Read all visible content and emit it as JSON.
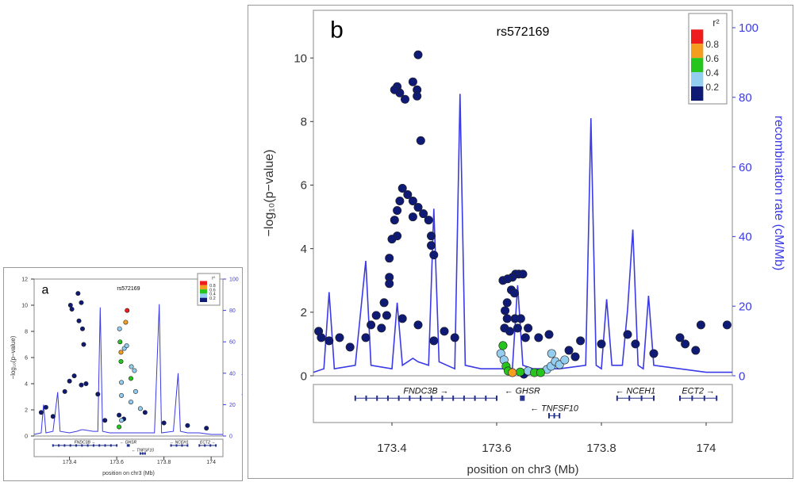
{
  "chart_data": [
    {
      "panel": "a",
      "type": "scatter",
      "panel_label": "a",
      "title": "rs572169",
      "ylabel": "−log₁₀(p−value)",
      "y2label": "recombination rate (cM/Mb)",
      "xlabel": "position on chr3 (Mb)",
      "xlim": [
        173.25,
        174.05
      ],
      "ylim": [
        0,
        12
      ],
      "y2lim": [
        0,
        100
      ],
      "xticks": [
        "173.4",
        "173.6",
        "173.8",
        "174"
      ],
      "yticks": [
        "0",
        "2",
        "4",
        "6",
        "8",
        "10",
        "12"
      ],
      "y2ticks": [
        "0",
        "20",
        "40",
        "60",
        "80",
        "100"
      ],
      "legend": {
        "title": "r²",
        "labels": [
          "0.8",
          "0.6",
          "0.4",
          "0.2"
        ],
        "colors": [
          "#ee1c1c",
          "#f59d1f",
          "#25c51d",
          "#93cdf0",
          "#0e1a73"
        ],
        "position": "top-right"
      },
      "genes": [
        {
          "name": "FNDC3B",
          "direction": "→",
          "start": 173.33,
          "end": 173.6,
          "row": 0
        },
        {
          "name": "GHSR",
          "direction": "←",
          "start": 173.646,
          "end": 173.652,
          "row": 0
        },
        {
          "name": "NCEH1",
          "direction": "←",
          "start": 173.83,
          "end": 173.9,
          "row": 0
        },
        {
          "name": "ECT2",
          "direction": "→",
          "start": 173.95,
          "end": 174.02,
          "row": 0
        },
        {
          "name": "TNFSF10",
          "direction": "←",
          "start": 173.7,
          "end": 173.72,
          "row": 1
        }
      ],
      "recombination": [
        [
          173.25,
          1
        ],
        [
          173.28,
          2
        ],
        [
          173.29,
          20
        ],
        [
          173.3,
          2
        ],
        [
          173.33,
          3
        ],
        [
          173.35,
          28
        ],
        [
          173.36,
          3
        ],
        [
          173.4,
          2
        ],
        [
          173.43,
          3
        ],
        [
          173.45,
          4
        ],
        [
          173.46,
          4
        ],
        [
          173.5,
          3
        ],
        [
          173.52,
          3
        ],
        [
          173.53,
          82
        ],
        [
          173.54,
          3
        ],
        [
          173.57,
          2
        ],
        [
          173.62,
          2
        ],
        [
          173.63,
          2
        ],
        [
          173.66,
          2
        ],
        [
          173.7,
          2
        ],
        [
          173.76,
          2
        ],
        [
          173.78,
          84
        ],
        [
          173.79,
          2
        ],
        [
          173.84,
          3
        ],
        [
          173.86,
          40
        ],
        [
          173.87,
          3
        ],
        [
          173.9,
          2
        ],
        [
          173.95,
          2
        ],
        [
          174.0,
          1
        ],
        [
          174.05,
          1
        ]
      ],
      "points": [
        {
          "x": 173.404,
          "y": 10.0,
          "r2": 0.1
        },
        {
          "x": 173.41,
          "y": 9.7,
          "r2": 0.1
        },
        {
          "x": 173.436,
          "y": 10.9,
          "r2": 0.1
        },
        {
          "x": 173.45,
          "y": 10.2,
          "r2": 0.1
        },
        {
          "x": 173.44,
          "y": 8.8,
          "r2": 0.1
        },
        {
          "x": 173.455,
          "y": 8.2,
          "r2": 0.1
        },
        {
          "x": 173.46,
          "y": 7.0,
          "r2": 0.1
        },
        {
          "x": 173.42,
          "y": 4.6,
          "r2": 0.1
        },
        {
          "x": 173.4,
          "y": 4.2,
          "r2": 0.1
        },
        {
          "x": 173.38,
          "y": 3.4,
          "r2": 0.1
        },
        {
          "x": 173.47,
          "y": 4.0,
          "r2": 0.1
        },
        {
          "x": 173.45,
          "y": 3.9,
          "r2": 0.1
        },
        {
          "x": 173.3,
          "y": 2.2,
          "r2": 0.1
        },
        {
          "x": 173.28,
          "y": 1.8,
          "r2": 0.1
        },
        {
          "x": 173.33,
          "y": 1.5,
          "r2": 0.1
        },
        {
          "x": 173.52,
          "y": 3.2,
          "r2": 0.1
        },
        {
          "x": 173.55,
          "y": 1.2,
          "r2": 0.1
        },
        {
          "x": 173.644,
          "y": 9.6,
          "r2": 0.9
        },
        {
          "x": 173.638,
          "y": 8.7,
          "r2": 0.7
        },
        {
          "x": 173.612,
          "y": 8.2,
          "r2": 0.3
        },
        {
          "x": 173.614,
          "y": 7.2,
          "r2": 0.5
        },
        {
          "x": 173.632,
          "y": 6.7,
          "r2": 0.3
        },
        {
          "x": 173.618,
          "y": 6.4,
          "r2": 0.6
        },
        {
          "x": 173.642,
          "y": 6.9,
          "r2": 0.3
        },
        {
          "x": 173.618,
          "y": 5.7,
          "r2": 0.5
        },
        {
          "x": 173.662,
          "y": 5.3,
          "r2": 0.3
        },
        {
          "x": 173.675,
          "y": 5.0,
          "r2": 0.3
        },
        {
          "x": 173.66,
          "y": 4.4,
          "r2": 0.5
        },
        {
          "x": 173.62,
          "y": 4.1,
          "r2": 0.3
        },
        {
          "x": 173.68,
          "y": 3.4,
          "r2": 0.3
        },
        {
          "x": 173.62,
          "y": 3.1,
          "r2": 0.3
        },
        {
          "x": 173.66,
          "y": 2.6,
          "r2": 0.3
        },
        {
          "x": 173.7,
          "y": 2.1,
          "r2": 0.3
        },
        {
          "x": 173.72,
          "y": 1.8,
          "r2": 0.1
        },
        {
          "x": 173.61,
          "y": 1.6,
          "r2": 0.1
        },
        {
          "x": 173.63,
          "y": 1.3,
          "r2": 0.1
        },
        {
          "x": 173.61,
          "y": 0.7,
          "r2": 0.5
        },
        {
          "x": 173.62,
          "y": 1.2,
          "r2": 0.3
        },
        {
          "x": 173.8,
          "y": 1.0,
          "r2": 0.1
        },
        {
          "x": 173.9,
          "y": 0.8,
          "r2": 0.1
        },
        {
          "x": 173.98,
          "y": 0.6,
          "r2": 0.1
        }
      ]
    },
    {
      "panel": "b",
      "type": "scatter",
      "panel_label": "b",
      "title": "rs572169",
      "ylabel": "−log₁₀(p−value)",
      "y2label": "recombination rate (cM/Mb)",
      "xlabel": "position on chr3 (Mb)",
      "xlim": [
        173.25,
        174.05
      ],
      "ylim": [
        0,
        11.5
      ],
      "y2lim": [
        0,
        105
      ],
      "xticks": [
        "173.4",
        "173.6",
        "173.8",
        "174"
      ],
      "yticks": [
        "0",
        "2",
        "4",
        "6",
        "8",
        "10"
      ],
      "y2ticks": [
        "0",
        "20",
        "40",
        "60",
        "80",
        "100"
      ],
      "legend": {
        "title": "r²",
        "labels": [
          "0.8",
          "0.6",
          "0.4",
          "0.2"
        ],
        "colors": [
          "#ee1c1c",
          "#f59d1f",
          "#25c51d",
          "#93cdf0",
          "#0e1a73"
        ],
        "position": "top-right"
      },
      "genes": [
        {
          "name": "FNDC3B",
          "direction": "→",
          "start": 173.33,
          "end": 173.6,
          "row": 0
        },
        {
          "name": "GHSR",
          "direction": "←",
          "start": 173.646,
          "end": 173.652,
          "row": 0
        },
        {
          "name": "NCEH1",
          "direction": "←",
          "start": 173.83,
          "end": 173.9,
          "row": 0
        },
        {
          "name": "ECT2",
          "direction": "→",
          "start": 173.95,
          "end": 174.02,
          "row": 0
        },
        {
          "name": "TNFSF10",
          "direction": "←",
          "start": 173.7,
          "end": 173.72,
          "row": 1
        }
      ],
      "recombination": [
        [
          173.25,
          1
        ],
        [
          173.27,
          2
        ],
        [
          173.28,
          24
        ],
        [
          173.29,
          2
        ],
        [
          173.33,
          3
        ],
        [
          173.35,
          33
        ],
        [
          173.36,
          3
        ],
        [
          173.4,
          2
        ],
        [
          173.41,
          21
        ],
        [
          173.42,
          3
        ],
        [
          173.44,
          5
        ],
        [
          173.45,
          4
        ],
        [
          173.47,
          3
        ],
        [
          173.48,
          48
        ],
        [
          173.49,
          4
        ],
        [
          173.52,
          2
        ],
        [
          173.53,
          81
        ],
        [
          173.54,
          3
        ],
        [
          173.57,
          2
        ],
        [
          173.6,
          2
        ],
        [
          173.63,
          2
        ],
        [
          173.64,
          26
        ],
        [
          173.65,
          3
        ],
        [
          173.67,
          2
        ],
        [
          173.7,
          2
        ],
        [
          173.72,
          2
        ],
        [
          173.77,
          3
        ],
        [
          173.78,
          74
        ],
        [
          173.79,
          3
        ],
        [
          173.8,
          2
        ],
        [
          173.81,
          22
        ],
        [
          173.82,
          3
        ],
        [
          173.84,
          3
        ],
        [
          173.85,
          19
        ],
        [
          173.86,
          42
        ],
        [
          173.87,
          3
        ],
        [
          173.88,
          2
        ],
        [
          173.89,
          23
        ],
        [
          173.9,
          3
        ],
        [
          173.95,
          2
        ],
        [
          174.0,
          1
        ],
        [
          174.05,
          1
        ]
      ],
      "points": [
        {
          "x": 173.45,
          "y": 10.1,
          "r2": 0.1
        },
        {
          "x": 173.41,
          "y": 9.1,
          "r2": 0.1
        },
        {
          "x": 173.415,
          "y": 8.9,
          "r2": 0.1
        },
        {
          "x": 173.44,
          "y": 9.25,
          "r2": 0.1
        },
        {
          "x": 173.448,
          "y": 9.0,
          "r2": 0.1
        },
        {
          "x": 173.425,
          "y": 8.7,
          "r2": 0.1
        },
        {
          "x": 173.448,
          "y": 8.8,
          "r2": 0.1
        },
        {
          "x": 173.405,
          "y": 9.0,
          "r2": 0.1
        },
        {
          "x": 173.455,
          "y": 7.4,
          "r2": 0.1
        },
        {
          "x": 173.42,
          "y": 5.9,
          "r2": 0.1
        },
        {
          "x": 173.43,
          "y": 5.7,
          "r2": 0.1
        },
        {
          "x": 173.415,
          "y": 5.5,
          "r2": 0.1
        },
        {
          "x": 173.44,
          "y": 5.5,
          "r2": 0.1
        },
        {
          "x": 173.45,
          "y": 5.3,
          "r2": 0.1
        },
        {
          "x": 173.41,
          "y": 5.2,
          "r2": 0.1
        },
        {
          "x": 173.46,
          "y": 5.1,
          "r2": 0.1
        },
        {
          "x": 173.47,
          "y": 4.9,
          "r2": 0.1
        },
        {
          "x": 173.405,
          "y": 4.9,
          "r2": 0.1
        },
        {
          "x": 173.44,
          "y": 5.0,
          "r2": 0.1
        },
        {
          "x": 173.41,
          "y": 4.4,
          "r2": 0.1
        },
        {
          "x": 173.4,
          "y": 4.3,
          "r2": 0.1
        },
        {
          "x": 173.475,
          "y": 4.4,
          "r2": 0.1
        },
        {
          "x": 173.475,
          "y": 4.1,
          "r2": 0.1
        },
        {
          "x": 173.395,
          "y": 3.7,
          "r2": 0.1
        },
        {
          "x": 173.48,
          "y": 3.8,
          "r2": 0.1
        },
        {
          "x": 173.395,
          "y": 3.1,
          "r2": 0.1
        },
        {
          "x": 173.395,
          "y": 2.9,
          "r2": 0.1
        },
        {
          "x": 173.385,
          "y": 2.3,
          "r2": 0.1
        },
        {
          "x": 173.39,
          "y": 1.9,
          "r2": 0.1
        },
        {
          "x": 173.37,
          "y": 1.9,
          "r2": 0.1
        },
        {
          "x": 173.42,
          "y": 1.8,
          "r2": 0.1
        },
        {
          "x": 173.36,
          "y": 1.6,
          "r2": 0.1
        },
        {
          "x": 173.38,
          "y": 1.5,
          "r2": 0.1
        },
        {
          "x": 173.45,
          "y": 1.6,
          "r2": 0.1
        },
        {
          "x": 173.5,
          "y": 1.4,
          "r2": 0.1
        },
        {
          "x": 173.52,
          "y": 1.2,
          "r2": 0.1
        },
        {
          "x": 173.48,
          "y": 1.1,
          "r2": 0.1
        },
        {
          "x": 173.35,
          "y": 1.2,
          "r2": 0.1
        },
        {
          "x": 173.636,
          "y": 3.2,
          "r2": 0.1
        },
        {
          "x": 173.642,
          "y": 3.2,
          "r2": 0.1
        },
        {
          "x": 173.65,
          "y": 3.2,
          "r2": 0.1
        },
        {
          "x": 173.63,
          "y": 3.1,
          "r2": 0.1
        },
        {
          "x": 173.612,
          "y": 3.0,
          "r2": 0.1
        },
        {
          "x": 173.621,
          "y": 3.05,
          "r2": 0.1
        },
        {
          "x": 173.628,
          "y": 2.7,
          "r2": 0.1
        },
        {
          "x": 173.634,
          "y": 2.6,
          "r2": 0.1
        },
        {
          "x": 173.62,
          "y": 2.3,
          "r2": 0.1
        },
        {
          "x": 173.616,
          "y": 2.05,
          "r2": 0.1
        },
        {
          "x": 173.62,
          "y": 1.8,
          "r2": 0.1
        },
        {
          "x": 173.635,
          "y": 1.8,
          "r2": 0.1
        },
        {
          "x": 173.646,
          "y": 1.8,
          "r2": 0.1
        },
        {
          "x": 173.615,
          "y": 1.5,
          "r2": 0.1
        },
        {
          "x": 173.625,
          "y": 1.4,
          "r2": 0.1
        },
        {
          "x": 173.64,
          "y": 1.5,
          "r2": 0.1
        },
        {
          "x": 173.66,
          "y": 1.5,
          "r2": 0.1
        },
        {
          "x": 173.68,
          "y": 1.2,
          "r2": 0.1
        },
        {
          "x": 173.7,
          "y": 1.3,
          "r2": 0.1
        },
        {
          "x": 173.655,
          "y": 1.2,
          "r2": 0.1
        },
        {
          "x": 173.612,
          "y": 0.95,
          "r2": 0.5
        },
        {
          "x": 173.608,
          "y": 0.7,
          "r2": 0.3
        },
        {
          "x": 173.614,
          "y": 0.5,
          "r2": 0.3
        },
        {
          "x": 173.618,
          "y": 0.3,
          "r2": 0.5
        },
        {
          "x": 173.622,
          "y": 0.15,
          "r2": 0.5
        },
        {
          "x": 173.63,
          "y": 0.1,
          "r2": 0.7
        },
        {
          "x": 173.645,
          "y": 0.12,
          "r2": 0.5
        },
        {
          "x": 173.66,
          "y": 0.15,
          "r2": 0.3
        },
        {
          "x": 173.672,
          "y": 0.1,
          "r2": 0.5
        },
        {
          "x": 173.684,
          "y": 0.1,
          "r2": 0.5
        },
        {
          "x": 173.696,
          "y": 0.2,
          "r2": 0.3
        },
        {
          "x": 173.704,
          "y": 0.3,
          "r2": 0.3
        },
        {
          "x": 173.712,
          "y": 0.45,
          "r2": 0.3
        },
        {
          "x": 173.72,
          "y": 0.35,
          "r2": 0.3
        },
        {
          "x": 173.73,
          "y": 0.5,
          "r2": 0.3
        },
        {
          "x": 173.705,
          "y": 0.7,
          "r2": 0.3
        },
        {
          "x": 173.738,
          "y": 0.8,
          "r2": 0.1
        },
        {
          "x": 173.75,
          "y": 0.6,
          "r2": 0.1
        },
        {
          "x": 173.652,
          "y": 0.05,
          "r2": 0.1
        },
        {
          "x": 173.26,
          "y": 1.4,
          "r2": 0.1
        },
        {
          "x": 173.265,
          "y": 1.2,
          "r2": 0.1
        },
        {
          "x": 173.28,
          "y": 1.1,
          "r2": 0.1
        },
        {
          "x": 173.3,
          "y": 1.2,
          "r2": 0.1
        },
        {
          "x": 173.32,
          "y": 0.9,
          "r2": 0.1
        },
        {
          "x": 173.8,
          "y": 1.0,
          "r2": 0.1
        },
        {
          "x": 173.76,
          "y": 1.1,
          "r2": 0.1
        },
        {
          "x": 173.85,
          "y": 1.3,
          "r2": 0.1
        },
        {
          "x": 173.865,
          "y": 1.0,
          "r2": 0.1
        },
        {
          "x": 173.95,
          "y": 1.2,
          "r2": 0.1
        },
        {
          "x": 173.96,
          "y": 1.0,
          "r2": 0.1
        },
        {
          "x": 174.04,
          "y": 1.6,
          "r2": 0.1
        },
        {
          "x": 173.98,
          "y": 0.8,
          "r2": 0.1
        },
        {
          "x": 173.9,
          "y": 0.7,
          "r2": 0.1
        },
        {
          "x": 173.99,
          "y": 1.6,
          "r2": 0.1
        }
      ]
    }
  ]
}
